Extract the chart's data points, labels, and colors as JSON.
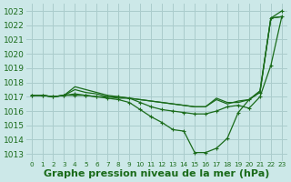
{
  "xlabel": "Graphe pression niveau de la mer (hPa)",
  "background_color": "#cce8e8",
  "grid_color": "#aacccc",
  "line_color": "#1a6b1a",
  "marker_color": "#1a6b1a",
  "text_color": "#1a6b1a",
  "ylim": [
    1012.5,
    1023.5
  ],
  "yticks": [
    1013,
    1014,
    1015,
    1016,
    1017,
    1018,
    1019,
    1020,
    1021,
    1022,
    1023
  ],
  "xlim": [
    -0.5,
    23.5
  ],
  "xticks": [
    0,
    1,
    2,
    3,
    4,
    5,
    6,
    7,
    8,
    9,
    10,
    11,
    12,
    13,
    14,
    15,
    16,
    17,
    18,
    19,
    20,
    21,
    22,
    23
  ],
  "series": [
    {
      "y": [
        1017.1,
        1017.1,
        1017.0,
        1017.1,
        1017.1,
        1017.1,
        1017.0,
        1017.0,
        1017.0,
        1016.9,
        1016.6,
        1016.3,
        1016.1,
        1016.0,
        1015.9,
        1015.8,
        1015.8,
        1016.0,
        1016.3,
        1016.4,
        1016.2,
        1017.0,
        1019.2,
        1022.6
      ],
      "marker": true,
      "linewidth": 0.9
    },
    {
      "y": [
        1017.1,
        1017.1,
        1017.0,
        1017.1,
        1017.2,
        1017.1,
        1017.0,
        1016.9,
        1016.8,
        1016.6,
        1016.1,
        1015.6,
        1015.2,
        1014.7,
        1014.6,
        1013.1,
        1013.1,
        1013.4,
        1014.1,
        1015.9,
        1016.8,
        1017.3,
        1022.5,
        1023.0
      ],
      "marker": true,
      "linewidth": 0.9
    },
    {
      "y": [
        1017.1,
        1017.1,
        1017.0,
        1017.1,
        1017.7,
        1017.5,
        1017.3,
        1017.1,
        1017.0,
        1016.9,
        1016.8,
        1016.7,
        1016.6,
        1016.5,
        1016.4,
        1016.3,
        1016.3,
        1016.8,
        1016.5,
        1016.7,
        1016.8,
        1017.4,
        1022.5,
        1022.6
      ],
      "marker": false,
      "linewidth": 0.9
    },
    {
      "y": [
        1017.1,
        1017.1,
        1017.0,
        1017.1,
        1017.5,
        1017.3,
        1017.2,
        1017.0,
        1016.9,
        1016.9,
        1016.8,
        1016.7,
        1016.6,
        1016.5,
        1016.4,
        1016.3,
        1016.3,
        1016.9,
        1016.6,
        1016.6,
        1016.8,
        1017.4,
        1022.5,
        1022.6
      ],
      "marker": false,
      "linewidth": 0.9
    }
  ],
  "xlabel_fontsize": 8,
  "xtick_fontsize": 5.2,
  "ytick_fontsize": 6.5,
  "figsize": [
    3.2,
    2.0
  ],
  "dpi": 100
}
